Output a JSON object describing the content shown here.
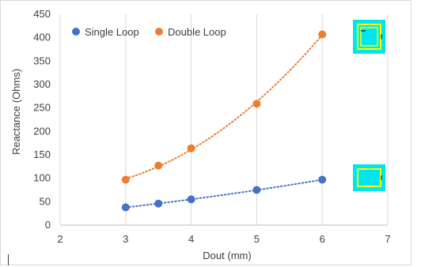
{
  "chart_data": {
    "type": "scatter",
    "xlabel": "Dout (mm)",
    "ylabel": "Reactance (Ohms)",
    "xlim": [
      2,
      7
    ],
    "ylim": [
      0,
      450
    ],
    "xticks": [
      2,
      3,
      4,
      5,
      6,
      7
    ],
    "yticks": [
      0,
      50,
      100,
      150,
      200,
      250,
      300,
      350,
      400,
      450
    ],
    "grid": "vertical",
    "legend": "top-left",
    "series": [
      {
        "name": "Single Loop",
        "color": "#4472c4",
        "x": [
          3,
          3.5,
          4,
          5,
          6
        ],
        "y": [
          38,
          46,
          55,
          75,
          97
        ],
        "trendline": "dotted"
      },
      {
        "name": "Double Loop",
        "color": "#ed7d31",
        "x": [
          3,
          3.5,
          4,
          5,
          6
        ],
        "y": [
          97,
          127,
          164,
          259,
          407
        ],
        "trendline": "dotted"
      }
    ],
    "insets": [
      {
        "name": "double-loop-inset-icon",
        "near_series": "Double Loop",
        "background": "#00e5ee",
        "trace": "#ffff00"
      },
      {
        "name": "single-loop-inset-icon",
        "near_series": "Single Loop",
        "background": "#00e5ee",
        "trace": "#ffff00"
      }
    ]
  }
}
